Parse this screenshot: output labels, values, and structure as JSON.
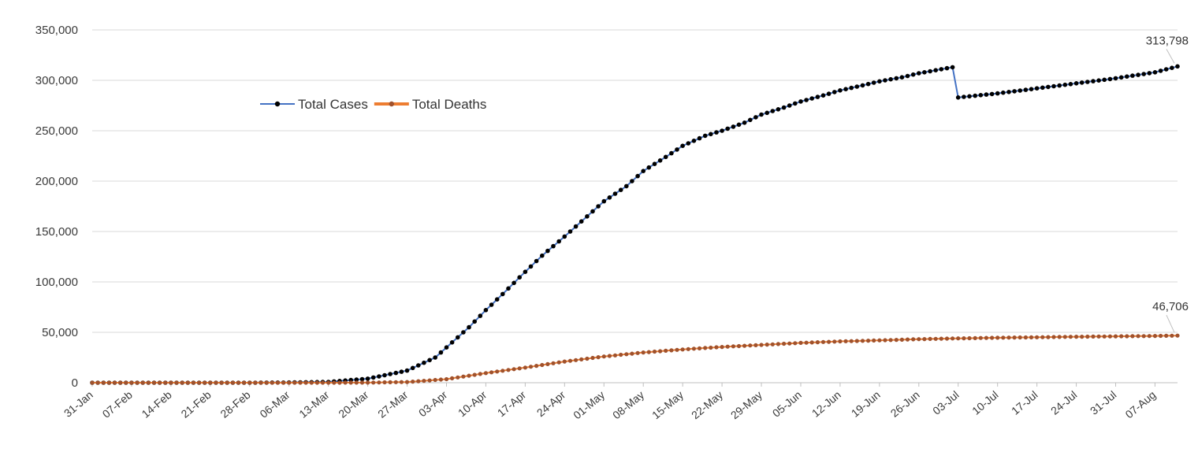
{
  "chart_data": {
    "type": "line",
    "title": "",
    "xlabel": "",
    "ylabel": "",
    "ylim": [
      0,
      350000
    ],
    "y_ticks": [
      "0",
      "50,000",
      "100,000",
      "150,000",
      "200,000",
      "250,000",
      "300,000",
      "350,000"
    ],
    "x_tick_labels": [
      "31-Jan",
      "07-Feb",
      "14-Feb",
      "21-Feb",
      "28-Feb",
      "06-Mar",
      "13-Mar",
      "20-Mar",
      "27-Mar",
      "03-Apr",
      "10-Apr",
      "17-Apr",
      "24-Apr",
      "01-May",
      "08-May",
      "15-May",
      "22-May",
      "29-May",
      "05-Jun",
      "12-Jun",
      "19-Jun",
      "26-Jun",
      "03-Jul",
      "10-Jul",
      "17-Jul",
      "24-Jul",
      "31-Jul",
      "07-Aug"
    ],
    "x_range": [
      "2020-01-31",
      "2020-08-11"
    ],
    "grid": "horizontal",
    "legend_position": "top-left",
    "series": [
      {
        "name": "Total Cases",
        "color": "#000000",
        "line_color": "#4472c4",
        "marker": "circle",
        "end_label": "313,798",
        "points": [
          [
            "2020-01-31",
            0
          ],
          [
            "2020-02-14",
            3
          ],
          [
            "2020-02-28",
            9
          ],
          [
            "2020-03-06",
            200
          ],
          [
            "2020-03-13",
            800
          ],
          [
            "2020-03-20",
            4000
          ],
          [
            "2020-03-27",
            12000
          ],
          [
            "2020-04-01",
            25000
          ],
          [
            "2020-04-04",
            40000
          ],
          [
            "2020-04-07",
            55000
          ],
          [
            "2020-04-10",
            72000
          ],
          [
            "2020-04-13",
            88000
          ],
          [
            "2020-04-17",
            110000
          ],
          [
            "2020-04-20",
            126000
          ],
          [
            "2020-04-24",
            145000
          ],
          [
            "2020-04-28",
            165000
          ],
          [
            "2020-05-01",
            180000
          ],
          [
            "2020-05-05",
            195000
          ],
          [
            "2020-05-08",
            210000
          ],
          [
            "2020-05-12",
            224000
          ],
          [
            "2020-05-15",
            235000
          ],
          [
            "2020-05-19",
            245000
          ],
          [
            "2020-05-22",
            250000
          ],
          [
            "2020-05-26",
            258000
          ],
          [
            "2020-05-29",
            266000
          ],
          [
            "2020-06-02",
            273000
          ],
          [
            "2020-06-05",
            279000
          ],
          [
            "2020-06-09",
            285000
          ],
          [
            "2020-06-12",
            290000
          ],
          [
            "2020-06-16",
            295000
          ],
          [
            "2020-06-19",
            299000
          ],
          [
            "2020-06-23",
            303000
          ],
          [
            "2020-06-26",
            307000
          ],
          [
            "2020-06-30",
            311000
          ],
          [
            "2020-07-02",
            313000
          ],
          [
            "2020-07-03",
            283000
          ],
          [
            "2020-07-10",
            287000
          ],
          [
            "2020-07-17",
            292000
          ],
          [
            "2020-07-24",
            297000
          ],
          [
            "2020-07-31",
            302000
          ],
          [
            "2020-08-07",
            308000
          ],
          [
            "2020-08-11",
            313798
          ]
        ]
      },
      {
        "name": "Total Deaths",
        "color": "#a0522d",
        "line_color": "#ed7d31",
        "marker": "circle",
        "end_label": "46,706",
        "points": [
          [
            "2020-01-31",
            0
          ],
          [
            "2020-02-28",
            0
          ],
          [
            "2020-03-06",
            0
          ],
          [
            "2020-03-13",
            8
          ],
          [
            "2020-03-20",
            100
          ],
          [
            "2020-03-27",
            700
          ],
          [
            "2020-04-03",
            3500
          ],
          [
            "2020-04-10",
            9500
          ],
          [
            "2020-04-17",
            15000
          ],
          [
            "2020-04-24",
            21000
          ],
          [
            "2020-05-01",
            26000
          ],
          [
            "2020-05-08",
            30000
          ],
          [
            "2020-05-15",
            33000
          ],
          [
            "2020-05-22",
            35500
          ],
          [
            "2020-05-29",
            37500
          ],
          [
            "2020-06-05",
            39500
          ],
          [
            "2020-06-12",
            41000
          ],
          [
            "2020-06-19",
            42000
          ],
          [
            "2020-06-26",
            43200
          ],
          [
            "2020-07-03",
            44000
          ],
          [
            "2020-07-10",
            44600
          ],
          [
            "2020-07-17",
            45100
          ],
          [
            "2020-07-24",
            45600
          ],
          [
            "2020-07-31",
            46000
          ],
          [
            "2020-08-07",
            46400
          ],
          [
            "2020-08-11",
            46706
          ]
        ]
      }
    ]
  }
}
